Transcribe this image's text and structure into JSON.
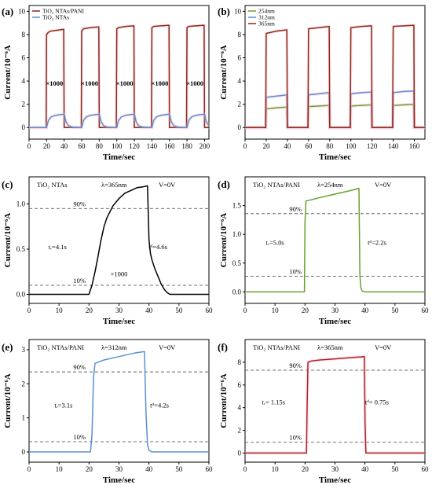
{
  "chart_data": [
    {
      "id": "a",
      "type": "line",
      "panel_label": "(a)",
      "xlabel": "Time/sec",
      "ylabel": "Current/10⁻⁶A",
      "xlim": [
        0,
        205
      ],
      "ylim": [
        -1,
        10.5
      ],
      "xticks": [
        0,
        20,
        40,
        60,
        80,
        100,
        120,
        140,
        160,
        180,
        200
      ],
      "yticks": [
        0,
        2,
        4,
        6,
        8,
        10
      ],
      "legend": {
        "position": "top-left",
        "entries": [
          "TiO₂ NTAs/PANI",
          "TiO₂ NTAs"
        ]
      },
      "series": [
        {
          "name": "TiO₂ NTAs/PANI",
          "color": "#8b2a1a",
          "x": [
            0,
            19.5,
            20,
            22,
            25,
            30,
            35,
            39.5,
            40,
            59.5,
            60,
            62,
            70,
            79.5,
            80,
            99.5,
            100,
            102,
            110,
            119.5,
            120,
            139.5,
            140,
            142,
            150,
            159.5,
            160,
            179.5,
            180,
            182,
            190,
            199.5,
            200,
            205
          ],
          "y": [
            0,
            0,
            8.0,
            8.2,
            8.3,
            8.35,
            8.4,
            8.45,
            0,
            0,
            8.3,
            8.5,
            8.6,
            8.65,
            0,
            0,
            8.5,
            8.6,
            8.7,
            8.75,
            0,
            0,
            8.6,
            8.7,
            8.75,
            8.8,
            0,
            0,
            8.6,
            8.7,
            8.75,
            8.8,
            0,
            0
          ]
        },
        {
          "name": "TiO₂ NTAs",
          "color": "#5b8fd6",
          "x": [
            0,
            20,
            22,
            25,
            30,
            35,
            40,
            42,
            45,
            50,
            60,
            62,
            65,
            70,
            75,
            80,
            82,
            85,
            90,
            100,
            102,
            105,
            110,
            115,
            120,
            122,
            125,
            130,
            140,
            142,
            145,
            150,
            155,
            160,
            162,
            165,
            170,
            180,
            182,
            185,
            190,
            195,
            200,
            202,
            205
          ],
          "y": [
            0,
            0,
            0.6,
            0.9,
            1.05,
            1.1,
            1.15,
            0.5,
            0.15,
            0.02,
            0,
            0.6,
            0.9,
            1.05,
            1.1,
            1.15,
            0.5,
            0.15,
            0.02,
            0,
            0.6,
            0.9,
            1.05,
            1.1,
            1.15,
            0.5,
            0.15,
            0.02,
            0,
            0.6,
            0.9,
            1.05,
            1.1,
            1.15,
            0.5,
            0.15,
            0.02,
            0,
            0.6,
            0.9,
            1.05,
            1.1,
            1.15,
            0.5,
            0.15
          ]
        }
      ],
      "annotations": [
        {
          "text": "×1000",
          "x": 29,
          "y": 3.6,
          "color": "#000"
        },
        {
          "text": "×1000",
          "x": 69,
          "y": 3.6,
          "color": "#000"
        },
        {
          "text": "×1000",
          "x": 109,
          "y": 3.6,
          "color": "#000"
        },
        {
          "text": "×1000",
          "x": 149,
          "y": 3.6,
          "color": "#000"
        },
        {
          "text": "×1000",
          "x": 189,
          "y": 3.6,
          "color": "#000"
        }
      ]
    },
    {
      "id": "b",
      "type": "line",
      "panel_label": "(b)",
      "xlabel": "Time/sec",
      "ylabel": "Current/10⁻⁶A",
      "xlim": [
        0,
        170
      ],
      "ylim": [
        -1,
        10.5
      ],
      "xticks": [
        0,
        20,
        40,
        60,
        80,
        100,
        120,
        140,
        160
      ],
      "yticks": [
        0,
        2,
        4,
        6,
        8,
        10
      ],
      "legend": {
        "position": "top-left",
        "entries": [
          "254nm",
          "312nm",
          "365nm"
        ]
      },
      "series": [
        {
          "name": "254nm",
          "color": "#6aa12e",
          "x": [
            0,
            19.5,
            20,
            30,
            39.5,
            40,
            59.5,
            60,
            70,
            79.5,
            80,
            99.5,
            100,
            110,
            119.5,
            120,
            139.5,
            140,
            150,
            159.5,
            160,
            170
          ],
          "y": [
            0,
            0,
            1.6,
            1.7,
            1.75,
            0,
            0,
            1.8,
            1.85,
            1.9,
            0,
            0,
            1.85,
            1.9,
            1.95,
            0,
            0,
            1.9,
            1.95,
            2.0,
            0,
            0
          ]
        },
        {
          "name": "312nm",
          "color": "#5b8fd6",
          "x": [
            0,
            19.5,
            20,
            30,
            39.5,
            40,
            59.5,
            60,
            70,
            79.5,
            80,
            99.5,
            100,
            110,
            119.5,
            120,
            139.5,
            140,
            150,
            159.5,
            160,
            170
          ],
          "y": [
            0,
            0,
            2.6,
            2.7,
            2.8,
            0,
            0,
            2.8,
            2.9,
            3.0,
            0,
            0,
            2.9,
            3.0,
            3.05,
            0,
            0,
            3.0,
            3.1,
            3.15,
            0,
            0
          ]
        },
        {
          "name": "365nm",
          "color": "#8b2a1a",
          "x": [
            0,
            19.5,
            20,
            30,
            39.5,
            40,
            59.5,
            60,
            70,
            79.5,
            80,
            99.5,
            100,
            110,
            119.5,
            120,
            139.5,
            140,
            150,
            159.5,
            160,
            170
          ],
          "y": [
            0,
            0,
            8.1,
            8.3,
            8.4,
            0,
            0,
            8.5,
            8.6,
            8.7,
            0,
            0,
            8.6,
            8.7,
            8.75,
            0,
            0,
            8.7,
            8.75,
            8.8,
            0,
            0
          ]
        }
      ]
    },
    {
      "id": "c",
      "type": "line",
      "panel_label": "(c)",
      "xlabel": "Time/sec",
      "ylabel": "Current/10⁻⁶A",
      "xlim": [
        0,
        60
      ],
      "ylim": [
        -0.1,
        1.3
      ],
      "xticks": [
        0,
        10,
        20,
        30,
        40,
        50,
        60
      ],
      "yticks": [
        0.0,
        0.5,
        1.0
      ],
      "ytick_labels": [
        "0.0",
        "0.5",
        "1.0"
      ],
      "header": {
        "sample": "TiO₂ NTAs",
        "wavelength": "λ=365nm",
        "bias": "V=0V"
      },
      "series": [
        {
          "name": "",
          "color": "#000000",
          "x": [
            0,
            20,
            21,
            22,
            23,
            24,
            25,
            26,
            28,
            30,
            32,
            34,
            36,
            38,
            39.5,
            40,
            40.5,
            41,
            42,
            43,
            44,
            45,
            46,
            47,
            50,
            60
          ],
          "y": [
            0,
            0,
            0.1,
            0.25,
            0.42,
            0.6,
            0.75,
            0.85,
            0.98,
            1.06,
            1.12,
            1.15,
            1.18,
            1.19,
            1.2,
            0.6,
            0.45,
            0.38,
            0.28,
            0.2,
            0.12,
            0.06,
            0.02,
            0.0,
            0,
            0
          ]
        }
      ],
      "reference_lines": [
        {
          "y": 0.95,
          "label": "90%"
        },
        {
          "y": 0.1,
          "label": "10%"
        }
      ],
      "annotations": [
        {
          "text": "tᵣ=4.1s",
          "x": 9.5,
          "y": 0.5,
          "color": "#000"
        },
        {
          "text": "tᵈ=4.6s",
          "x": 43,
          "y": 0.5,
          "color": "#000"
        },
        {
          "text": "×1000",
          "x": 30,
          "y": 0.2,
          "color": "#c0392b",
          "big": true
        }
      ]
    },
    {
      "id": "d",
      "type": "line",
      "panel_label": "(d)",
      "xlabel": "Time/sec",
      "ylabel": "Current/10⁻⁶A",
      "xlim": [
        0,
        60
      ],
      "ylim": [
        -0.2,
        2.0
      ],
      "xticks": [
        0,
        10,
        20,
        30,
        40,
        50,
        60
      ],
      "yticks": [
        0.0,
        0.5,
        1.0,
        1.5
      ],
      "ytick_labels": [
        "0.0",
        "0.5",
        "1.0",
        "1.5"
      ],
      "header": {
        "sample": "TiO₂ NTAs/PANI",
        "wavelength": "λ=254nm",
        "bias": "V=0V"
      },
      "series": [
        {
          "name": "",
          "color": "#6aa12e",
          "x": [
            0,
            19.8,
            20,
            20.3,
            22,
            25,
            30,
            35,
            38,
            38.3,
            38.6,
            39,
            40,
            60
          ],
          "y": [
            0,
            0,
            1.2,
            1.58,
            1.6,
            1.64,
            1.7,
            1.76,
            1.8,
            0.3,
            0.08,
            0.02,
            0,
            0
          ]
        }
      ],
      "reference_lines": [
        {
          "y": 1.36,
          "label": "90%"
        },
        {
          "y": 0.27,
          "label": "10%"
        }
      ],
      "annotations": [
        {
          "text": "tᵣ=5.0s",
          "x": 10,
          "y": 0.82,
          "color": "#000"
        },
        {
          "text": "tᵈ=2.2s",
          "x": 44,
          "y": 0.82,
          "color": "#000"
        }
      ]
    },
    {
      "id": "e",
      "type": "line",
      "panel_label": "(e)",
      "xlabel": "Time/sec",
      "ylabel": "Current/10⁻⁶A",
      "xlim": [
        0,
        60
      ],
      "ylim": [
        -0.3,
        3.3
      ],
      "xticks": [
        0,
        10,
        20,
        30,
        40,
        50,
        60
      ],
      "yticks": [
        0,
        1,
        2,
        3
      ],
      "header": {
        "sample": "TiO₂ NTAs/PANI",
        "wavelength": "λ=312nm",
        "bias": "V=0V"
      },
      "series": [
        {
          "name": "",
          "color": "#5b8fd6",
          "x": [
            0,
            20.5,
            21,
            21.5,
            22,
            25,
            30,
            35,
            38.5,
            39,
            39.5,
            40,
            41,
            60
          ],
          "y": [
            0,
            0,
            0.5,
            2.2,
            2.6,
            2.7,
            2.8,
            2.9,
            2.95,
            1.2,
            0.2,
            0.05,
            0,
            0
          ]
        }
      ],
      "reference_lines": [
        {
          "y": 2.35,
          "label": "90%"
        },
        {
          "y": 0.3,
          "label": "10%"
        }
      ],
      "annotations": [
        {
          "text": "tᵣ=3.1s",
          "x": 11.5,
          "y": 1.3,
          "color": "#000"
        },
        {
          "text": "tᵈ=4.2s",
          "x": 43.5,
          "y": 1.3,
          "color": "#000"
        }
      ]
    },
    {
      "id": "f",
      "type": "line",
      "panel_label": "(f)",
      "xlabel": "Time/sec",
      "ylabel": "Current/10⁻⁶A",
      "xlim": [
        0,
        60
      ],
      "ylim": [
        -0.8,
        10.0
      ],
      "xticks": [
        0,
        10,
        20,
        30,
        40,
        50,
        60
      ],
      "yticks": [
        0,
        2,
        4,
        6,
        8
      ],
      "header": {
        "sample": "TiO₂ NTAs/PANI",
        "wavelength": "λ=365nm",
        "bias": "V=0V"
      },
      "series": [
        {
          "name": "",
          "color": "#b22222",
          "x": [
            0,
            20.5,
            20.7,
            21,
            22,
            25,
            30,
            35,
            39.8,
            40,
            40.3,
            60
          ],
          "y": [
            0,
            0,
            4,
            8.0,
            8.1,
            8.2,
            8.3,
            8.4,
            8.5,
            3,
            0,
            0
          ]
        }
      ],
      "reference_lines": [
        {
          "y": 7.3,
          "label": "90%"
        },
        {
          "y": 0.95,
          "label": "10%"
        }
      ],
      "annotations": [
        {
          "text": "tᵣ= 1.15s",
          "x": 9.5,
          "y": 4.3,
          "color": "#000"
        },
        {
          "text": "tᵈ= 0.75s",
          "x": 44,
          "y": 4.3,
          "color": "#000"
        }
      ]
    }
  ]
}
